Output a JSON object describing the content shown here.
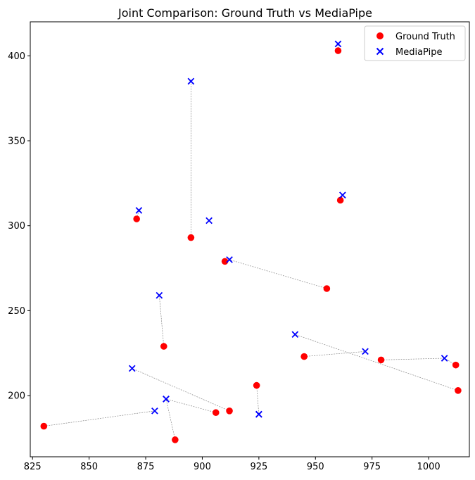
{
  "chart_data": {
    "type": "scatter",
    "title": "Joint Comparison: Ground Truth vs MediaPipe",
    "xlabel": "",
    "ylabel": "",
    "xlim": [
      824,
      1018
    ],
    "ylim": [
      164,
      420
    ],
    "xticks": [
      825,
      850,
      875,
      900,
      925,
      950,
      975,
      1000
    ],
    "yticks": [
      200,
      250,
      300,
      350,
      400
    ],
    "grid": false,
    "legend": "top-right",
    "series": [
      {
        "name": "Ground Truth",
        "marker": "circle",
        "color": "#ff0000",
        "points": [
          [
            960,
            403
          ],
          [
            961,
            315
          ],
          [
            871,
            304
          ],
          [
            895,
            293
          ],
          [
            910,
            279
          ],
          [
            955,
            263
          ],
          [
            883,
            229
          ],
          [
            945,
            223
          ],
          [
            979,
            221
          ],
          [
            1012,
            218
          ],
          [
            1013,
            203
          ],
          [
            924,
            206
          ],
          [
            912,
            191
          ],
          [
            906,
            190
          ],
          [
            830,
            182
          ],
          [
            888,
            174
          ]
        ]
      },
      {
        "name": "MediaPipe",
        "marker": "x",
        "color": "#0000ff",
        "points": [
          [
            960,
            407
          ],
          [
            962,
            318
          ],
          [
            872,
            309
          ],
          [
            895,
            385
          ],
          [
            912,
            280
          ],
          [
            903,
            303
          ],
          [
            881,
            259
          ],
          [
            972,
            226
          ],
          [
            1007,
            222
          ],
          [
            941,
            236
          ],
          [
            869,
            216
          ],
          [
            925,
            189
          ],
          [
            879,
            191
          ],
          [
            884,
            198
          ],
          [
            884,
            198
          ],
          [
            925,
            189
          ]
        ]
      }
    ],
    "connections": [
      [
        [
          960,
          403
        ],
        [
          960,
          407
        ]
      ],
      [
        [
          961,
          315
        ],
        [
          962,
          318
        ]
      ],
      [
        [
          871,
          304
        ],
        [
          872,
          309
        ]
      ],
      [
        [
          895,
          293
        ],
        [
          895,
          385
        ]
      ],
      [
        [
          910,
          279
        ],
        [
          912,
          280
        ]
      ],
      [
        [
          955,
          263
        ],
        [
          912,
          280
        ]
      ],
      [
        [
          883,
          229
        ],
        [
          881,
          259
        ]
      ],
      [
        [
          945,
          223
        ],
        [
          972,
          226
        ]
      ],
      [
        [
          979,
          221
        ],
        [
          1007,
          222
        ]
      ],
      [
        [
          1012,
          218
        ],
        [
          1007,
          222
        ]
      ],
      [
        [
          1013,
          203
        ],
        [
          941,
          236
        ]
      ],
      [
        [
          924,
          206
        ],
        [
          925,
          189
        ]
      ],
      [
        [
          912,
          191
        ],
        [
          869,
          216
        ]
      ],
      [
        [
          906,
          190
        ],
        [
          884,
          198
        ]
      ],
      [
        [
          830,
          182
        ],
        [
          879,
          191
        ]
      ],
      [
        [
          888,
          174
        ],
        [
          884,
          198
        ]
      ]
    ],
    "connection_color": "#888888"
  }
}
